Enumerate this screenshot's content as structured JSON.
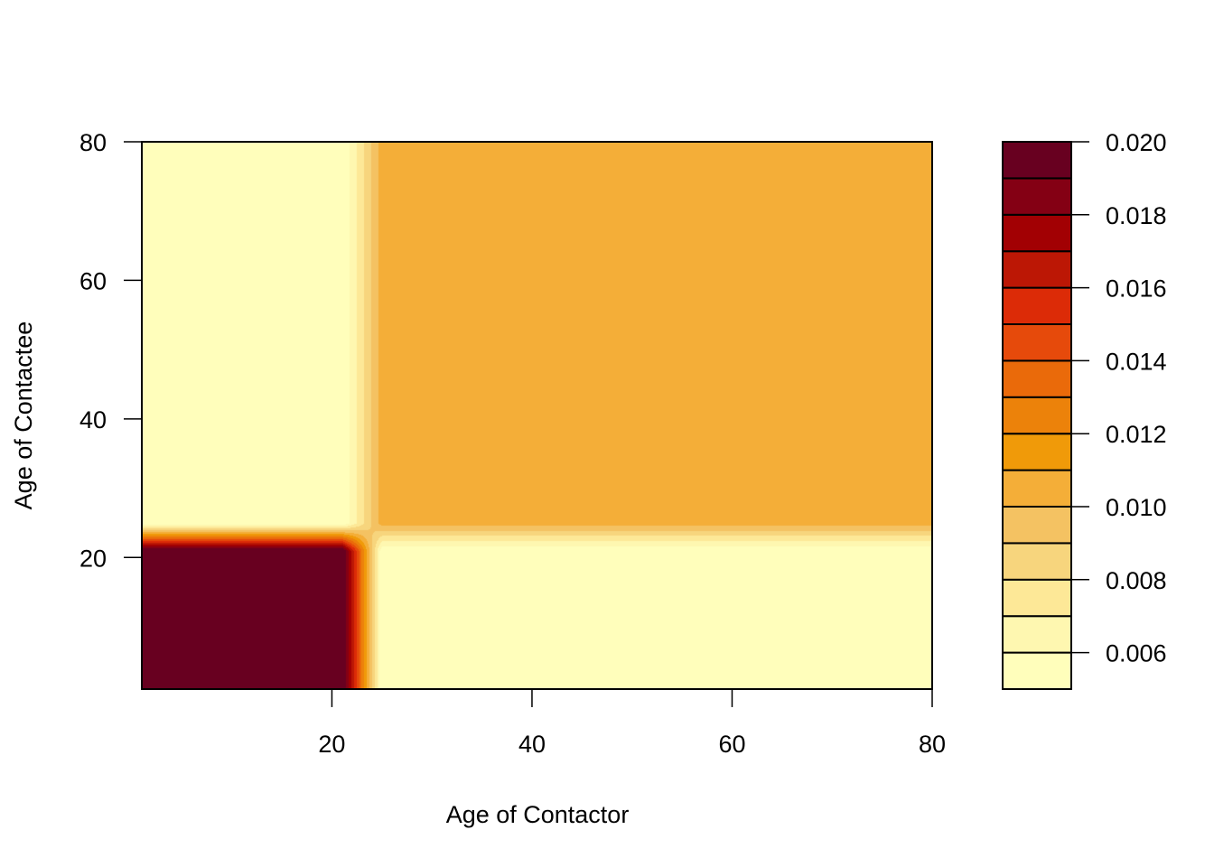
{
  "chart_data": {
    "type": "heatmap",
    "title": "",
    "xlabel": "Age of Contactor",
    "ylabel": "Age of Contactee",
    "xlim": [
      1,
      80
    ],
    "ylim": [
      1,
      80
    ],
    "xticks": [
      20,
      40,
      60,
      80
    ],
    "yticks": [
      20,
      40,
      60,
      80
    ],
    "grid_x": [
      1,
      21,
      25,
      80
    ],
    "grid_y": [
      1,
      21,
      25,
      80
    ],
    "z_rows_by_y": [
      [
        0.0205,
        0.0205,
        0.005,
        0.005
      ],
      [
        0.0205,
        0.0205,
        0.005,
        0.005
      ],
      [
        0.005,
        0.005,
        0.0105,
        0.0105
      ],
      [
        0.005,
        0.005,
        0.0105,
        0.0105
      ]
    ],
    "levels": [
      0.005,
      0.006,
      0.007,
      0.008,
      0.009,
      0.01,
      0.011,
      0.012,
      0.013,
      0.014,
      0.015,
      0.016,
      0.017,
      0.018,
      0.019,
      0.02
    ],
    "level_colors": [
      "#FFFEBB",
      "#FEF7B0",
      "#FDE897",
      "#F7D57D",
      "#F4C262",
      "#F4AE38",
      "#F09A09",
      "#EC820A",
      "#EA6A0A",
      "#E64A0B",
      "#DC2B07",
      "#BC1705",
      "#A20003",
      "#840014",
      "#680020"
    ],
    "legend_ticks": [
      "0.006",
      "0.008",
      "0.010",
      "0.012",
      "0.014",
      "0.016",
      "0.018",
      "0.020"
    ],
    "legend_placement": "right",
    "grid": false
  }
}
